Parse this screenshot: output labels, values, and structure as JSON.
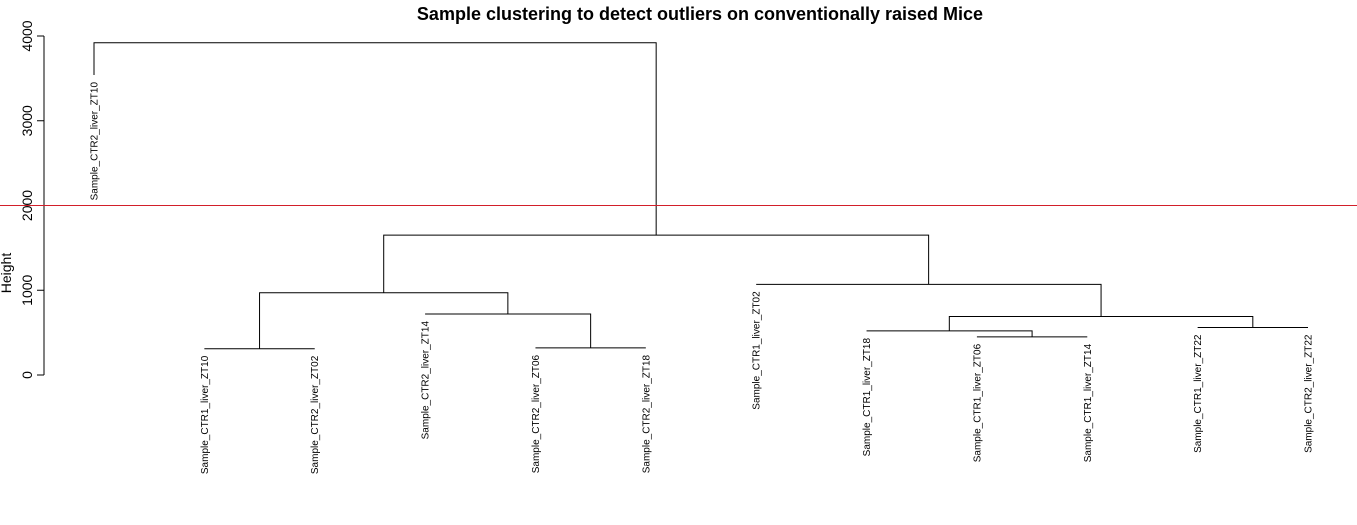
{
  "chart_data": {
    "type": "dendrogram",
    "title": "Sample clustering to detect outliers on conventionally raised Mice",
    "ylabel": "Height",
    "ylim": [
      0,
      4000
    ],
    "yticks": [
      0,
      1000,
      2000,
      3000,
      4000
    ],
    "cut_height": 2000,
    "cut_color": "#d21f2a",
    "leaves": [
      "Sample_CTR2_liver_ZT10",
      "Sample_CTR1_liver_ZT10",
      "Sample_CTR2_liver_ZT02",
      "Sample_CTR2_liver_ZT14",
      "Sample_CTR2_liver_ZT06",
      "Sample_CTR2_liver_ZT18",
      "Sample_CTR1_liver_ZT02",
      "Sample_CTR1_liver_ZT18",
      "Sample_CTR1_liver_ZT06",
      "Sample_CTR1_liver_ZT14",
      "Sample_CTR1_liver_ZT22",
      "Sample_CTR2_liver_ZT22"
    ],
    "leaf_heights": [
      3540,
      310,
      310,
      720,
      320,
      320,
      1070,
      520,
      450,
      450,
      560,
      560
    ],
    "merges": [
      {
        "left": "leaf:1",
        "right": "leaf:2",
        "height": 310
      },
      {
        "left": "leaf:4",
        "right": "leaf:5",
        "height": 320
      },
      {
        "left": "leaf:8",
        "right": "leaf:9",
        "height": 450
      },
      {
        "left": "leaf:7",
        "right": "merge:2",
        "height": 520
      },
      {
        "left": "leaf:10",
        "right": "leaf:11",
        "height": 560
      },
      {
        "left": "merge:3",
        "right": "merge:4",
        "height": 690
      },
      {
        "left": "leaf:3",
        "right": "merge:1",
        "height": 720
      },
      {
        "left": "merge:0",
        "right": "merge:6",
        "height": 970
      },
      {
        "left": "leaf:6",
        "right": "merge:5",
        "height": 1070
      },
      {
        "left": "merge:7",
        "right": "merge:8",
        "height": 1650
      },
      {
        "left": "leaf:0",
        "right": "merge:9",
        "height": 3920
      }
    ]
  }
}
